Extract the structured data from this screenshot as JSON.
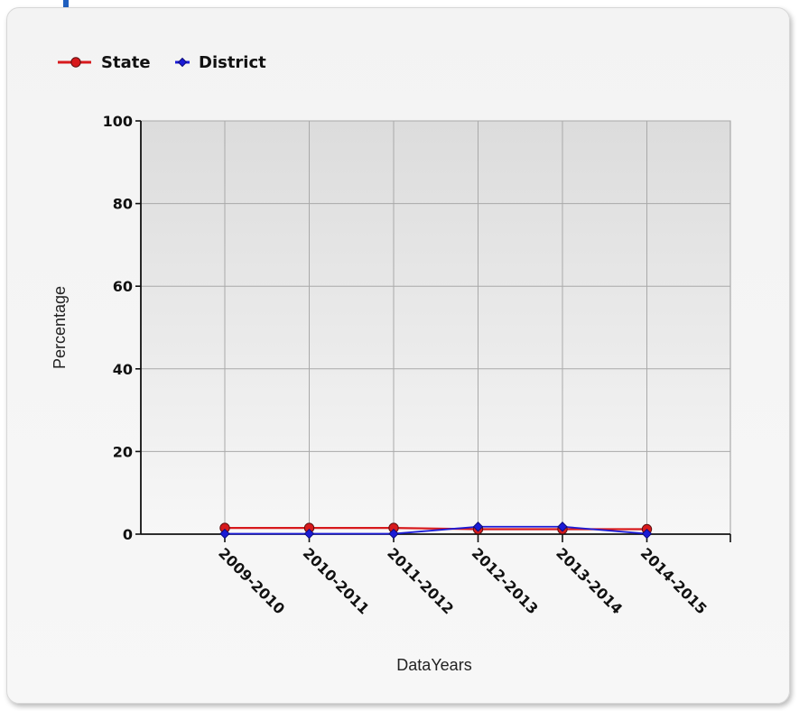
{
  "chart_data": {
    "type": "line",
    "categories": [
      "2009-2010",
      "2010-2011",
      "2011-2012",
      "2012-2013",
      "2013-2014",
      "2014-2015"
    ],
    "series": [
      {
        "name": "State",
        "values": [
          1.5,
          1.5,
          1.5,
          1.2,
          1.2,
          1.2
        ],
        "color": "#d7191c",
        "marker": "circle"
      },
      {
        "name": "District",
        "values": [
          0.1,
          0.1,
          0.1,
          1.8,
          1.8,
          0.1
        ],
        "color": "#1b1bd6",
        "marker": "diamond"
      }
    ],
    "title": "",
    "xlabel": "DataYears",
    "ylabel": "Percentage",
    "ylim": [
      0,
      100
    ],
    "yticks": [
      0,
      20,
      40,
      60,
      80,
      100
    ],
    "grid": true,
    "legend_position": "top-left"
  }
}
